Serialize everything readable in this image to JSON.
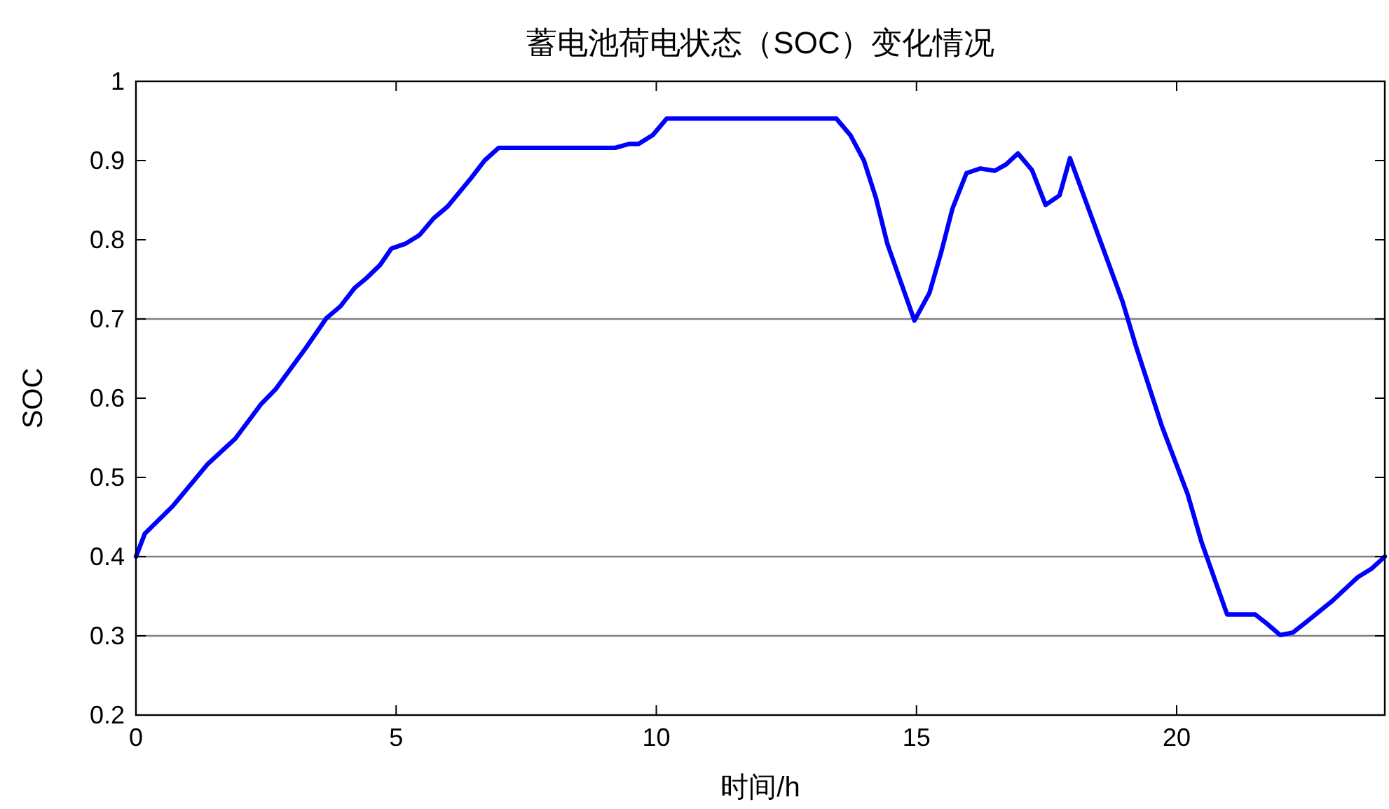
{
  "chart_data": {
    "type": "line",
    "title": "蓄电池荷电状态（SOC）变化情况",
    "xlabel": "时间/h",
    "ylabel": "SOC",
    "xlim": [
      0,
      24
    ],
    "xticks": [
      0,
      5,
      10,
      15,
      20
    ],
    "ylim": [
      0.2,
      1
    ],
    "yticks": [
      0.2,
      0.3,
      0.4,
      0.5,
      0.6,
      0.7,
      0.8,
      0.9,
      1
    ],
    "ref_lines": [
      {
        "axis": "y",
        "value": 0.7,
        "color": "#808080"
      },
      {
        "axis": "y",
        "value": 0.4,
        "color": "#808080"
      },
      {
        "axis": "y",
        "value": 0.3,
        "color": "#808080"
      }
    ],
    "series": [
      {
        "color": "#0000ff",
        "x": [
          0,
          0.17,
          0.71,
          1.38,
          1.91,
          2.41,
          2.68,
          3.26,
          3.66,
          3.93,
          4.2,
          4.42,
          4.69,
          4.91,
          5.18,
          5.45,
          5.72,
          5.99,
          6.43,
          6.7,
          6.97,
          9.21,
          9.48,
          9.66,
          9.93,
          10.2,
          13.46,
          13.73,
          13.99,
          14.22,
          14.44,
          14.96,
          15.25,
          15.47,
          15.69,
          15.96,
          16.23,
          16.5,
          16.72,
          16.95,
          17.22,
          17.48,
          17.75,
          17.95,
          18.96,
          19.23,
          19.72,
          20.21,
          20.48,
          20.97,
          21.51,
          21.74,
          21.99,
          22.23,
          22.5,
          22.99,
          23.48,
          23.75,
          24
        ],
        "values": [
          0.4,
          0.429,
          0.464,
          0.517,
          0.549,
          0.593,
          0.611,
          0.663,
          0.701,
          0.716,
          0.739,
          0.751,
          0.768,
          0.789,
          0.795,
          0.806,
          0.827,
          0.842,
          0.877,
          0.9,
          0.916,
          0.916,
          0.921,
          0.921,
          0.932,
          0.953,
          0.953,
          0.932,
          0.9,
          0.853,
          0.795,
          0.698,
          0.733,
          0.783,
          0.839,
          0.884,
          0.89,
          0.887,
          0.895,
          0.909,
          0.888,
          0.844,
          0.856,
          0.903,
          0.722,
          0.663,
          0.564,
          0.479,
          0.418,
          0.327,
          0.327,
          0.315,
          0.301,
          0.304,
          0.318,
          0.344,
          0.374,
          0.385,
          0.4
        ]
      }
    ]
  }
}
